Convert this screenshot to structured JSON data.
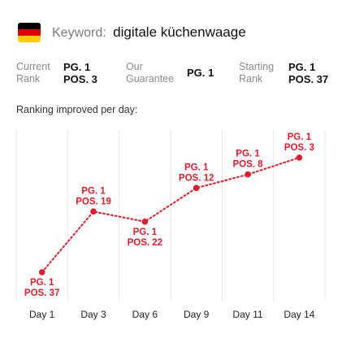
{
  "header": {
    "flag_colors": [
      "#000000",
      "#dd0000",
      "#ffce00"
    ],
    "keyword_label": "Keyword:",
    "keyword_value": "digitale küchenwaage"
  },
  "stats": {
    "current_rank": {
      "label_line1": "Current",
      "label_line2": "Rank",
      "pg": "PG. 1",
      "pos": "POS. 3"
    },
    "our_guarantee": {
      "label_line1": "Our",
      "label_line2": "Guarantee",
      "value": "PG. 1"
    },
    "starting_rank": {
      "label_line1": "Starting",
      "label_line2": "Rank",
      "pg": "PG. 1",
      "pos": "POS. 37"
    }
  },
  "chart_title": "Ranking improved per day:",
  "colors": {
    "accent": "#e01c2b",
    "grid": "#e6e6e6"
  },
  "chart_data": {
    "type": "line",
    "title": "Ranking improved per day:",
    "categories": [
      "Day 1",
      "Day 3",
      "Day 6",
      "Day 9",
      "Day 11",
      "Day 14"
    ],
    "series": [
      {
        "values": [
          37,
          19,
          22,
          12,
          8,
          3
        ],
        "labels": [
          [
            "PG. 1",
            "POS. 37"
          ],
          [
            "PG. 1",
            "POS. 19"
          ],
          [
            "PG. 1",
            "POS. 22"
          ],
          [
            "PG. 1",
            "POS. 12"
          ],
          [
            "PG. 1",
            "POS. 8"
          ],
          [
            "PG. 1",
            "POS. 3"
          ]
        ]
      }
    ],
    "y_reversed": true,
    "ylim": [
      37,
      3
    ],
    "grid": "vertical",
    "line_style": "dotted"
  }
}
